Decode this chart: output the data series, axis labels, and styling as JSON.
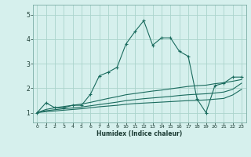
{
  "title": "",
  "xlabel": "Humidex (Indice chaleur)",
  "background_color": "#d6f0ed",
  "line_color": "#1a6b5e",
  "grid_color": "#aad4cc",
  "xlim": [
    -0.5,
    23.5
  ],
  "ylim": [
    0.6,
    5.4
  ],
  "xticks": [
    0,
    1,
    2,
    3,
    4,
    5,
    6,
    7,
    8,
    9,
    10,
    11,
    12,
    13,
    14,
    15,
    16,
    17,
    18,
    19,
    20,
    21,
    22,
    23
  ],
  "yticks": [
    1,
    2,
    3,
    4,
    5
  ],
  "series": [
    {
      "x": [
        0,
        1,
        2,
        3,
        4,
        5,
        6,
        7,
        8,
        9,
        10,
        11,
        12,
        13,
        14,
        15,
        16,
        17,
        18,
        19,
        20,
        21,
        22,
        23
      ],
      "y": [
        1.0,
        1.4,
        1.2,
        1.2,
        1.3,
        1.3,
        1.75,
        2.5,
        2.65,
        2.85,
        3.8,
        4.3,
        4.75,
        3.75,
        4.05,
        4.05,
        3.5,
        3.3,
        1.55,
        1.0,
        2.1,
        2.2,
        2.45,
        2.45
      ],
      "marker": true,
      "linestyle": "-"
    },
    {
      "x": [
        0,
        1,
        2,
        3,
        4,
        5,
        6,
        7,
        8,
        9,
        10,
        11,
        12,
        13,
        14,
        15,
        16,
        17,
        18,
        19,
        20,
        21,
        22,
        23
      ],
      "y": [
        1.0,
        1.13,
        1.2,
        1.25,
        1.3,
        1.35,
        1.42,
        1.5,
        1.58,
        1.65,
        1.73,
        1.78,
        1.83,
        1.88,
        1.92,
        1.97,
        2.02,
        2.07,
        2.1,
        2.12,
        2.18,
        2.22,
        2.28,
        2.35
      ],
      "marker": false,
      "linestyle": "-"
    },
    {
      "x": [
        0,
        1,
        2,
        3,
        4,
        5,
        6,
        7,
        8,
        9,
        10,
        11,
        12,
        13,
        14,
        15,
        16,
        17,
        18,
        19,
        20,
        21,
        22,
        23
      ],
      "y": [
        1.0,
        1.08,
        1.12,
        1.16,
        1.19,
        1.23,
        1.28,
        1.33,
        1.38,
        1.43,
        1.49,
        1.53,
        1.57,
        1.6,
        1.63,
        1.66,
        1.7,
        1.73,
        1.75,
        1.77,
        1.8,
        1.84,
        1.95,
        2.2
      ],
      "marker": false,
      "linestyle": "-"
    },
    {
      "x": [
        0,
        1,
        2,
        3,
        4,
        5,
        6,
        7,
        8,
        9,
        10,
        11,
        12,
        13,
        14,
        15,
        16,
        17,
        18,
        19,
        20,
        21,
        22,
        23
      ],
      "y": [
        1.0,
        1.04,
        1.07,
        1.1,
        1.13,
        1.16,
        1.2,
        1.24,
        1.27,
        1.3,
        1.34,
        1.37,
        1.39,
        1.41,
        1.43,
        1.45,
        1.47,
        1.49,
        1.5,
        1.52,
        1.55,
        1.58,
        1.72,
        1.95
      ],
      "marker": false,
      "linestyle": "-"
    }
  ]
}
